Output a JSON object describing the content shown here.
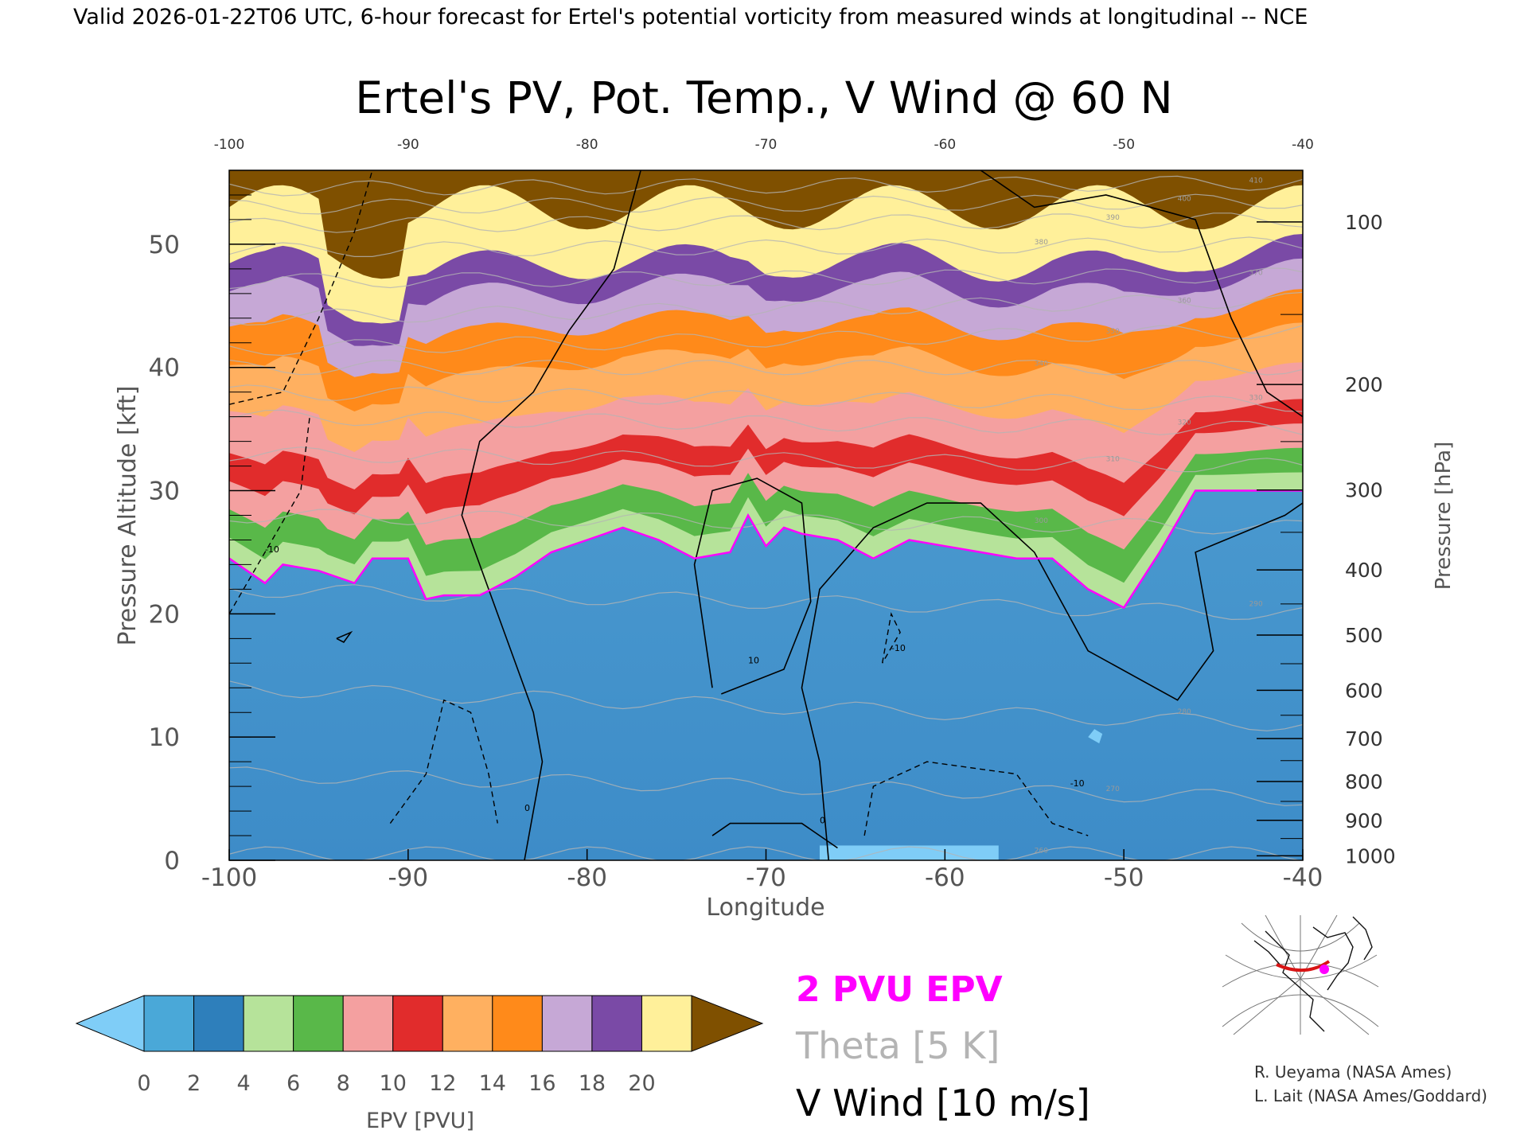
{
  "header_line": "Valid 2026-01-22T06 UTC, 6-hour forecast for Ertel's potential vorticity from measured winds at longitudinal -- NCE",
  "chart_data": {
    "type": "heatmap",
    "title": "Ertel's PV, Pot. Temp., V Wind @ 60 N",
    "xlabel": "Longitude",
    "ylabel": "Pressure Altitude [kft]",
    "y2label": "Pressure [hPa]",
    "xlim": [
      -100,
      -40
    ],
    "ylim": [
      0,
      56
    ],
    "x_ticks": [
      "-100",
      "-90",
      "-80",
      "-70",
      "-60",
      "-50",
      "-40"
    ],
    "x_tick_values": [
      -100,
      -90,
      -80,
      -70,
      -60,
      -50,
      -40
    ],
    "y_ticks": [
      "0",
      "10",
      "20",
      "30",
      "40",
      "50"
    ],
    "y_tick_values": [
      0,
      10,
      20,
      30,
      40,
      50
    ],
    "pressure_ticks": [
      "100",
      "200",
      "300",
      "400",
      "500",
      "600",
      "700",
      "800",
      "900",
      "1000"
    ],
    "pressure_tick_values": [
      100,
      200,
      300,
      400,
      500,
      600,
      700,
      800,
      900,
      1000
    ],
    "pv_2pvu_altitude_kft": {
      "lon": [
        -100,
        -98,
        -97,
        -95,
        -93,
        -92,
        -90,
        -89,
        -88,
        -86,
        -84,
        -82,
        -80,
        -78,
        -76,
        -74,
        -72,
        -71,
        -70,
        -69,
        -68,
        -66,
        -64,
        -62,
        -60,
        -58,
        -56,
        -54,
        -52,
        -50,
        -48,
        -46,
        -45,
        -40
      ],
      "alt": [
        24.5,
        22.5,
        24,
        23.5,
        22.5,
        24.5,
        24.5,
        21.2,
        21.5,
        21.5,
        23,
        25,
        26,
        27,
        26,
        24.5,
        25,
        28,
        25.5,
        27,
        26.5,
        26,
        24.5,
        26,
        25.5,
        25,
        24.5,
        24.5,
        22,
        20.5,
        25,
        30,
        30,
        30
      ]
    },
    "theta_levels_K": [
      260,
      270,
      280,
      290,
      300,
      310,
      320,
      330,
      340,
      350,
      360,
      370,
      380,
      390,
      400,
      410
    ],
    "theta_alt_kft_at_minus100": [
      0.5,
      7,
      14,
      22,
      28,
      33,
      36,
      38,
      40,
      41.5,
      44,
      47,
      49.5,
      51.5,
      53,
      54.5
    ],
    "theta_alt_kft_at_minus40": [
      0.5,
      5,
      11,
      20,
      27,
      32,
      35,
      37,
      40,
      43,
      45.5,
      47.5,
      50,
      52,
      53.5,
      55
    ],
    "v_wind_contour_labels": [
      "-10",
      "0",
      "10"
    ],
    "colorbar": {
      "label": "EPV [PVU]",
      "ticks": [
        "0",
        "2",
        "4",
        "6",
        "8",
        "10",
        "12",
        "14",
        "16",
        "18",
        "20"
      ],
      "values": [
        0,
        2,
        4,
        6,
        8,
        10,
        12,
        14,
        16,
        18,
        20
      ],
      "colors": [
        "#4aa8d8",
        "#2e7fbb",
        "#b6e39a",
        "#59b849",
        "#f4a0a0",
        "#e12c2c",
        "#ffb060",
        "#ff8a1a",
        "#c6a8d6",
        "#7a4aa6",
        "#fff09a"
      ],
      "under_color": "#7fcdf7",
      "over_color": "#7f5000"
    }
  },
  "legend": {
    "pv_label": "2 PVU EPV",
    "pv_color": "#ff00ff",
    "theta_label": "Theta [5 K]",
    "theta_color": "#b4b4b4",
    "wind_label": "V Wind [10 m/s]",
    "wind_color": "#000000"
  },
  "credits": {
    "line1": "R. Ueyama (NASA Ames)",
    "line2": "L. Lait (NASA Ames/Goddard)"
  }
}
